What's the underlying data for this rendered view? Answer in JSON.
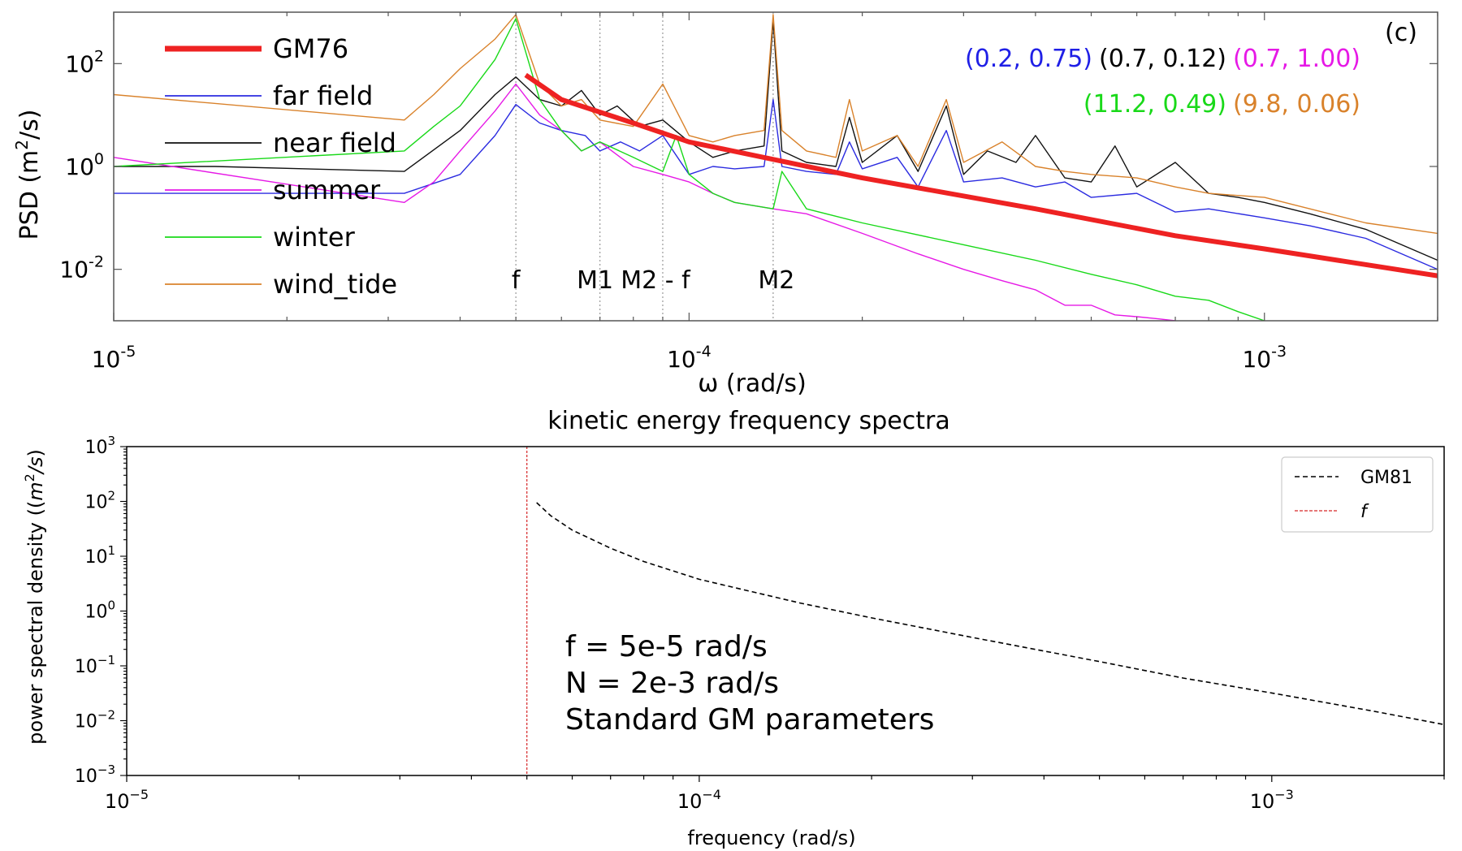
{
  "chart_data": [
    {
      "type": "line",
      "panel_label": "(c)",
      "xscale": "log",
      "yscale": "log",
      "xlim": [
        1e-05,
        0.002
      ],
      "ylim": [
        0.001,
        1000
      ],
      "xlabel": "ω (rad/s)",
      "ylabel_base": "PSD (m",
      "ylabel_sup": "2",
      "ylabel_end": "/s)",
      "x_ticks": [
        {
          "value": 1e-05,
          "base": "10",
          "exp": "-5"
        },
        {
          "value": 0.0001,
          "base": "10",
          "exp": "-4"
        },
        {
          "value": 0.001,
          "base": "10",
          "exp": "-3"
        }
      ],
      "y_ticks": [
        {
          "value": 0.01,
          "base": "10",
          "exp": "-2"
        },
        {
          "value": 1,
          "base": "10",
          "exp": "0"
        },
        {
          "value": 100,
          "base": "10",
          "exp": "2"
        }
      ],
      "legend_position": "top-left",
      "reference_lines": [
        {
          "label": "f",
          "x": 5e-05
        },
        {
          "label": "M1",
          "x": 7e-05
        },
        {
          "label": "M2 - f",
          "x": 9e-05
        },
        {
          "label": "M2",
          "x": 0.00014
        }
      ],
      "annotations": [
        {
          "text": "(0.2, 0.75)",
          "color": "#1f1fe6",
          "row": 1
        },
        {
          "text": "(0.7, 0.12)",
          "color": "#000000",
          "row": 1
        },
        {
          "text": "(0.7, 1.00)",
          "color": "#e619e6",
          "row": 1
        },
        {
          "text": "(11.2, 0.49)",
          "color": "#19d919",
          "row": 2
        },
        {
          "text": "(9.8, 0.06)",
          "color": "#d9822b",
          "row": 2
        }
      ],
      "series": [
        {
          "name": "GM76",
          "color": "#ee2222",
          "width": 6,
          "points": [
            [
              5.2e-05,
              60
            ],
            [
              6e-05,
              20
            ],
            [
              8e-05,
              7
            ],
            [
              0.0001,
              3
            ],
            [
              0.0002,
              0.6
            ],
            [
              0.0004,
              0.15
            ],
            [
              0.0007,
              0.045
            ],
            [
              0.001,
              0.025
            ],
            [
              0.002,
              0.0075
            ]
          ]
        },
        {
          "name": "far field",
          "color": "#2b2be0",
          "width": 1.4,
          "points": [
            [
              1e-05,
              0.3
            ],
            [
              1.8e-05,
              0.3
            ],
            [
              3.2e-05,
              0.3
            ],
            [
              4e-05,
              0.7
            ],
            [
              4.6e-05,
              4
            ],
            [
              5e-05,
              16
            ],
            [
              5.5e-05,
              7
            ],
            [
              6e-05,
              5
            ],
            [
              6.6e-05,
              4
            ],
            [
              7e-05,
              2
            ],
            [
              7.6e-05,
              3
            ],
            [
              8.2e-05,
              2
            ],
            [
              9e-05,
              4
            ],
            [
              0.0001,
              0.7
            ],
            [
              0.00011,
              1
            ],
            [
              0.00012,
              0.9
            ],
            [
              0.000135,
              1
            ],
            [
              0.00014,
              20
            ],
            [
              0.000145,
              1
            ],
            [
              0.00016,
              0.8
            ],
            [
              0.00018,
              0.7
            ],
            [
              0.00019,
              3
            ],
            [
              0.0002,
              0.9
            ],
            [
              0.00023,
              1.5
            ],
            [
              0.00025,
              0.4
            ],
            [
              0.00028,
              5
            ],
            [
              0.0003,
              0.5
            ],
            [
              0.00035,
              0.6
            ],
            [
              0.0004,
              0.4
            ],
            [
              0.00045,
              0.5
            ],
            [
              0.0005,
              0.25
            ],
            [
              0.0006,
              0.3
            ],
            [
              0.0007,
              0.13
            ],
            [
              0.0008,
              0.15
            ],
            [
              0.001,
              0.1
            ],
            [
              0.0012,
              0.07
            ],
            [
              0.0015,
              0.04
            ],
            [
              0.002,
              0.01
            ]
          ]
        },
        {
          "name": "near field",
          "color": "#111111",
          "width": 1.4,
          "points": [
            [
              1e-05,
              1
            ],
            [
              1.5e-05,
              1
            ],
            [
              3.2e-05,
              0.8
            ],
            [
              4e-05,
              5
            ],
            [
              4.6e-05,
              25
            ],
            [
              5e-05,
              55
            ],
            [
              5.5e-05,
              20
            ],
            [
              6e-05,
              15
            ],
            [
              6.5e-05,
              30
            ],
            [
              7e-05,
              10
            ],
            [
              7.5e-05,
              15
            ],
            [
              8.2e-05,
              6
            ],
            [
              9e-05,
              8
            ],
            [
              0.0001,
              3
            ],
            [
              0.00011,
              1.5
            ],
            [
              0.00012,
              2
            ],
            [
              0.000135,
              2.5
            ],
            [
              0.00014,
              700
            ],
            [
              0.000145,
              2
            ],
            [
              0.00016,
              1.2
            ],
            [
              0.00018,
              1
            ],
            [
              0.00019,
              9
            ],
            [
              0.0002,
              1.2
            ],
            [
              0.00023,
              4
            ],
            [
              0.00025,
              0.8
            ],
            [
              0.00028,
              15
            ],
            [
              0.0003,
              0.7
            ],
            [
              0.00033,
              2
            ],
            [
              0.00037,
              1.2
            ],
            [
              0.0004,
              4
            ],
            [
              0.00045,
              0.6
            ],
            [
              0.0005,
              0.5
            ],
            [
              0.00055,
              2.5
            ],
            [
              0.0006,
              0.4
            ],
            [
              0.0007,
              1.2
            ],
            [
              0.0008,
              0.3
            ],
            [
              0.0009,
              0.25
            ],
            [
              0.001,
              0.2
            ],
            [
              0.0012,
              0.12
            ],
            [
              0.0015,
              0.06
            ],
            [
              0.002,
              0.015
            ]
          ]
        },
        {
          "name": "summer",
          "color": "#e619e6",
          "width": 1.4,
          "points": [
            [
              1e-05,
              1.5
            ],
            [
              3.2e-05,
              0.2
            ],
            [
              3.6e-05,
              0.5
            ],
            [
              4e-05,
              2
            ],
            [
              4.6e-05,
              12
            ],
            [
              5e-05,
              40
            ],
            [
              5.5e-05,
              10
            ],
            [
              6e-05,
              5
            ],
            [
              6.5e-05,
              2
            ],
            [
              7e-05,
              3
            ],
            [
              7.6e-05,
              1.5
            ],
            [
              8e-05,
              1
            ],
            [
              9e-05,
              0.7
            ],
            [
              0.0001,
              0.5
            ],
            [
              0.00011,
              0.3
            ],
            [
              0.00012,
              0.2
            ],
            [
              0.00014,
              0.15
            ],
            [
              0.00016,
              0.12
            ],
            [
              0.0002,
              0.05
            ],
            [
              0.00025,
              0.02
            ],
            [
              0.0003,
              0.01
            ],
            [
              0.00035,
              0.006
            ],
            [
              0.0004,
              0.004
            ],
            [
              0.00045,
              0.002
            ],
            [
              0.0005,
              0.002
            ],
            [
              0.00055,
              0.0013
            ],
            [
              0.0006,
              0.0012
            ],
            [
              0.00065,
              0.0011
            ],
            [
              0.0007,
              0.001
            ]
          ]
        },
        {
          "name": "winter",
          "color": "#19d919",
          "width": 1.4,
          "points": [
            [
              1e-05,
              1
            ],
            [
              3.2e-05,
              2
            ],
            [
              3.6e-05,
              6
            ],
            [
              4e-05,
              15
            ],
            [
              4.6e-05,
              120
            ],
            [
              5e-05,
              750
            ],
            [
              5.5e-05,
              20
            ],
            [
              6e-05,
              5
            ],
            [
              6.5e-05,
              2
            ],
            [
              7e-05,
              3
            ],
            [
              8e-05,
              1.5
            ],
            [
              9e-05,
              0.8
            ],
            [
              9.5e-05,
              4
            ],
            [
              0.0001,
              0.7
            ],
            [
              0.00011,
              0.3
            ],
            [
              0.00012,
              0.2
            ],
            [
              0.00014,
              0.15
            ],
            [
              0.000145,
              0.8
            ],
            [
              0.00016,
              0.15
            ],
            [
              0.0002,
              0.08
            ],
            [
              0.0003,
              0.03
            ],
            [
              0.0004,
              0.015
            ],
            [
              0.0005,
              0.008
            ],
            [
              0.0006,
              0.005
            ],
            [
              0.0007,
              0.003
            ],
            [
              0.0008,
              0.0025
            ],
            [
              0.0009,
              0.0015
            ],
            [
              0.001,
              0.001
            ]
          ]
        },
        {
          "name": "wind_tide",
          "color": "#d9822b",
          "width": 1.4,
          "points": [
            [
              1e-05,
              25
            ],
            [
              3.2e-05,
              8
            ],
            [
              3.6e-05,
              25
            ],
            [
              4e-05,
              80
            ],
            [
              4.6e-05,
              300
            ],
            [
              5e-05,
              900
            ],
            [
              5.5e-05,
              40
            ],
            [
              6e-05,
              15
            ],
            [
              6.5e-05,
              20
            ],
            [
              7e-05,
              8
            ],
            [
              8e-05,
              6
            ],
            [
              9e-05,
              40
            ],
            [
              0.0001,
              4
            ],
            [
              0.00011,
              3
            ],
            [
              0.00012,
              4
            ],
            [
              0.000135,
              5
            ],
            [
              0.00014,
              900
            ],
            [
              0.000145,
              5
            ],
            [
              0.00016,
              2
            ],
            [
              0.00018,
              1.5
            ],
            [
              0.00019,
              20
            ],
            [
              0.0002,
              2
            ],
            [
              0.00023,
              4
            ],
            [
              0.00025,
              1
            ],
            [
              0.00028,
              20
            ],
            [
              0.0003,
              1.2
            ],
            [
              0.00035,
              3
            ],
            [
              0.0004,
              1
            ],
            [
              0.00045,
              0.8
            ],
            [
              0.0005,
              0.7
            ],
            [
              0.0006,
              0.6
            ],
            [
              0.0007,
              0.4
            ],
            [
              0.0008,
              0.3
            ],
            [
              0.001,
              0.25
            ],
            [
              0.0012,
              0.15
            ],
            [
              0.0015,
              0.08
            ],
            [
              0.002,
              0.05
            ]
          ]
        }
      ]
    },
    {
      "type": "line",
      "title": "kinetic energy frequency spectra",
      "xlabel": "frequency (rad/s)",
      "ylabel_base": "power spectral density ((",
      "ylabel_italic_m": "m",
      "ylabel_sup": "2",
      "ylabel_italic_s": "/s",
      "ylabel_end": ")",
      "xscale": "log",
      "yscale": "log",
      "xlim": [
        1e-05,
        0.002
      ],
      "ylim": [
        0.001,
        1000
      ],
      "x_ticks": [
        {
          "value": 1e-05,
          "base": "10",
          "exp": "−5"
        },
        {
          "value": 0.0001,
          "base": "10",
          "exp": "−4"
        },
        {
          "value": 0.001,
          "base": "10",
          "exp": "−3"
        }
      ],
      "y_ticks": [
        {
          "value": 0.001,
          "base": "10",
          "exp": "−3"
        },
        {
          "value": 0.01,
          "base": "10",
          "exp": "−2"
        },
        {
          "value": 0.1,
          "base": "10",
          "exp": "−1"
        },
        {
          "value": 1,
          "base": "10",
          "exp": "0"
        },
        {
          "value": 10,
          "base": "10",
          "exp": "1"
        },
        {
          "value": 100,
          "base": "10",
          "exp": "2"
        },
        {
          "value": 1000,
          "base": "10",
          "exp": "3"
        }
      ],
      "legend_position": "top-right",
      "legend": [
        {
          "label": "GM81",
          "color": "#000000",
          "style": "dashed",
          "italic": false
        },
        {
          "label": "f",
          "color": "#d62728",
          "style": "dashed",
          "italic": true
        }
      ],
      "annotation_lines": [
        "f = 5e-5 rad/s",
        "N = 2e-3 rad/s",
        "Standard GM parameters"
      ],
      "vline": {
        "label": "f",
        "x": 5e-05,
        "color": "#d62728"
      },
      "series": [
        {
          "name": "GM81",
          "color": "#000000",
          "style": "dashed",
          "points": [
            [
              5.2e-05,
              95
            ],
            [
              5.5e-05,
              55
            ],
            [
              6e-05,
              30
            ],
            [
              7e-05,
              14
            ],
            [
              8e-05,
              8
            ],
            [
              0.0001,
              3.8
            ],
            [
              0.00015,
              1.4
            ],
            [
              0.0002,
              0.75
            ],
            [
              0.0003,
              0.33
            ],
            [
              0.0005,
              0.12
            ],
            [
              0.0007,
              0.06
            ],
            [
              0.001,
              0.032
            ],
            [
              0.0015,
              0.015
            ],
            [
              0.002,
              0.0085
            ]
          ]
        }
      ]
    }
  ]
}
